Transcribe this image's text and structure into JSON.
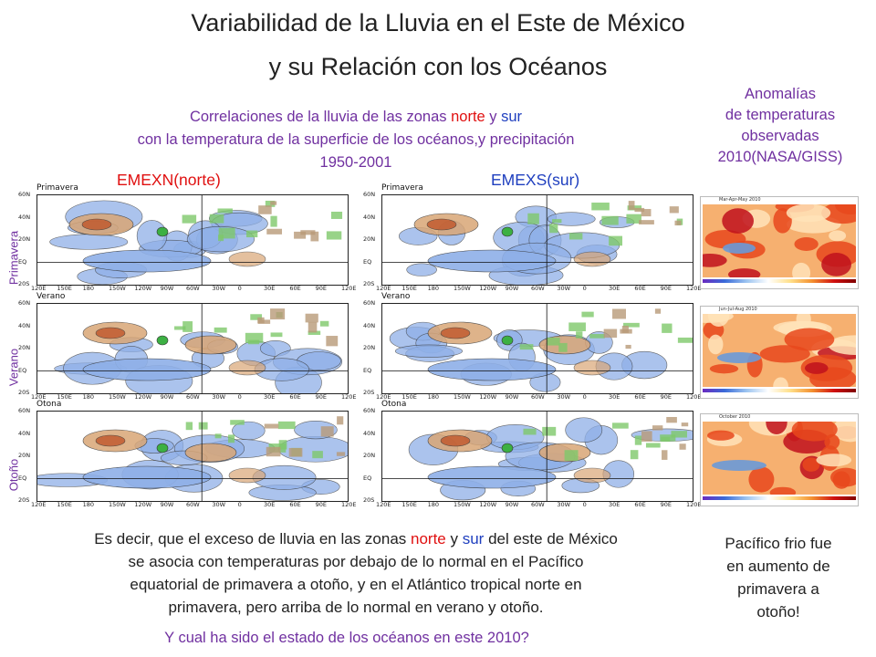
{
  "slide": {
    "title_line1": "Variabilidad de la Lluvia en el Este de México",
    "title_line2": "y su Relación con los Océanos",
    "corr_line1_a": "Correlaciones  de la lluvia de las zonas ",
    "corr_line1_norte": "norte",
    "corr_line1_y": " y ",
    "corr_line1_sur": "sur",
    "corr_line2": "con la temperatura de la superficie de los océanos,y precipitación",
    "corr_line3": "1950-2001",
    "col_left": "EMEXN(norte)",
    "col_right": "EMEXS(sur)",
    "anom_line1": "Anomalías",
    "anom_line2": "de temperaturas",
    "anom_line3": "observadas",
    "anom_line4": "2010(NASA/GISS)",
    "rows": [
      "Primavera",
      "Verano",
      "Otoño"
    ],
    "map_titles": [
      "Primavera",
      "Verano",
      "Otona"
    ],
    "lat_ticks": [
      "60N",
      "40N",
      "20N",
      "EQ",
      "20S"
    ],
    "lon_ticks": [
      "120E",
      "150E",
      "180",
      "150W",
      "120W",
      "90W",
      "60W",
      "30W",
      "0",
      "30E",
      "60E",
      "90E",
      "120E"
    ],
    "anom_headers": [
      "Mar-Apr-May 2010",
      "Jun-Jul-Aug 2010",
      "October 2010"
    ],
    "bottom_a": "Es decir, que el exceso de lluvia en las zonas ",
    "bottom_norte": "norte",
    "bottom_y": " y ",
    "bottom_sur": "sur",
    "bottom_b": " del este de México",
    "bottom_line2": "se asocia con temperaturas por debajo de lo normal en el Pacífico",
    "bottom_line3": "equatorial de primavera a otoño, y en el Atlántico tropical norte en",
    "bottom_line4": "primavera, pero arriba de lo normal en verano y otoño.",
    "question": "Y cual ha sido el estado de los océanos en este 2010?",
    "pacific_line1": "Pacífico frio fue",
    "pacific_line2": "en aumento de",
    "pacific_line3": "primavera a",
    "pacific_line4": "otoño!"
  },
  "colors": {
    "purple": "#7030a0",
    "red": "#e01010",
    "blue": "#1f3fbf",
    "pos_corr": "#d9a676",
    "neg_corr": "#8fb0e8",
    "precip": "#7ec86a",
    "warm_anom": "#e8481c",
    "cool_anom": "#6a9ad8"
  }
}
